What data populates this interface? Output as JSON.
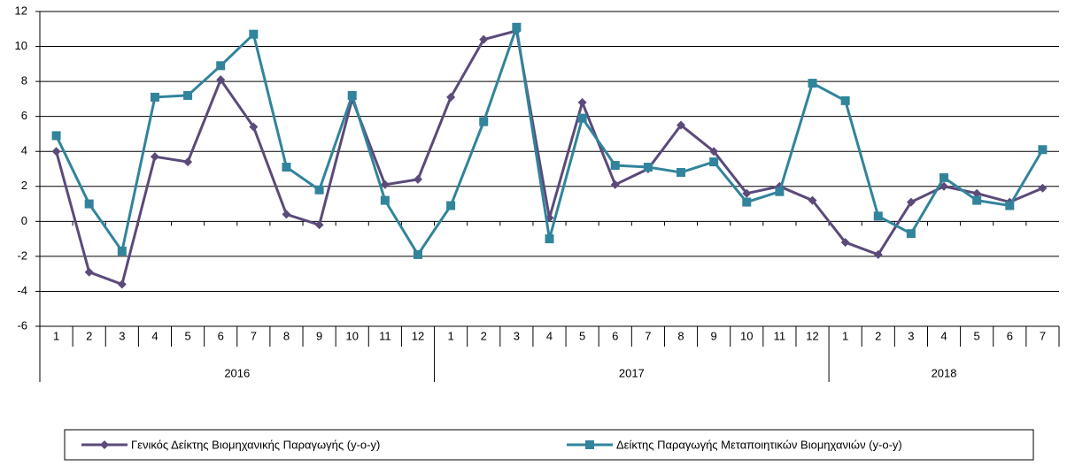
{
  "chart_data": {
    "type": "line",
    "categories": [
      "1",
      "2",
      "3",
      "4",
      "5",
      "6",
      "7",
      "8",
      "9",
      "10",
      "11",
      "12",
      "1",
      "2",
      "3",
      "4",
      "5",
      "6",
      "7",
      "8",
      "9",
      "10",
      "11",
      "12",
      "1",
      "2",
      "3",
      "4",
      "5",
      "6",
      "7"
    ],
    "groups": [
      "2016",
      "2017",
      "2018"
    ],
    "series": [
      {
        "name": "Γενικός Δείκτης Βιομηχανικής Παραγωγής (y-o-y)",
        "color": "#5b4a7a",
        "marker": "diamond",
        "values": [
          4.0,
          -2.9,
          -3.6,
          3.7,
          3.4,
          8.1,
          5.4,
          0.4,
          -0.2,
          7.0,
          2.1,
          2.4,
          7.1,
          10.4,
          10.9,
          0.2,
          6.8,
          2.1,
          3.0,
          5.5,
          4.0,
          1.6,
          2.0,
          1.2,
          -1.2,
          -1.9,
          1.1,
          2.0,
          1.6,
          1.1,
          1.9
        ]
      },
      {
        "name": "Δείκτης Παραγωγής Μεταποιητικών Βιομηχανιών (y-o-y)",
        "color": "#31849b",
        "marker": "square",
        "values": [
          4.9,
          1.0,
          -1.7,
          7.1,
          7.2,
          8.9,
          10.7,
          3.1,
          1.8,
          7.2,
          1.2,
          -1.9,
          0.9,
          5.7,
          11.1,
          -1.0,
          5.9,
          3.2,
          3.1,
          2.8,
          3.4,
          1.1,
          1.7,
          7.9,
          6.9,
          0.3,
          -0.7,
          2.5,
          1.2,
          0.9,
          4.1
        ]
      }
    ],
    "ylim": [
      -6,
      12
    ],
    "yticks": [
      -6,
      -4,
      -2,
      0,
      2,
      4,
      6,
      8,
      10,
      12
    ],
    "grid": true,
    "legend": "bottom"
  }
}
